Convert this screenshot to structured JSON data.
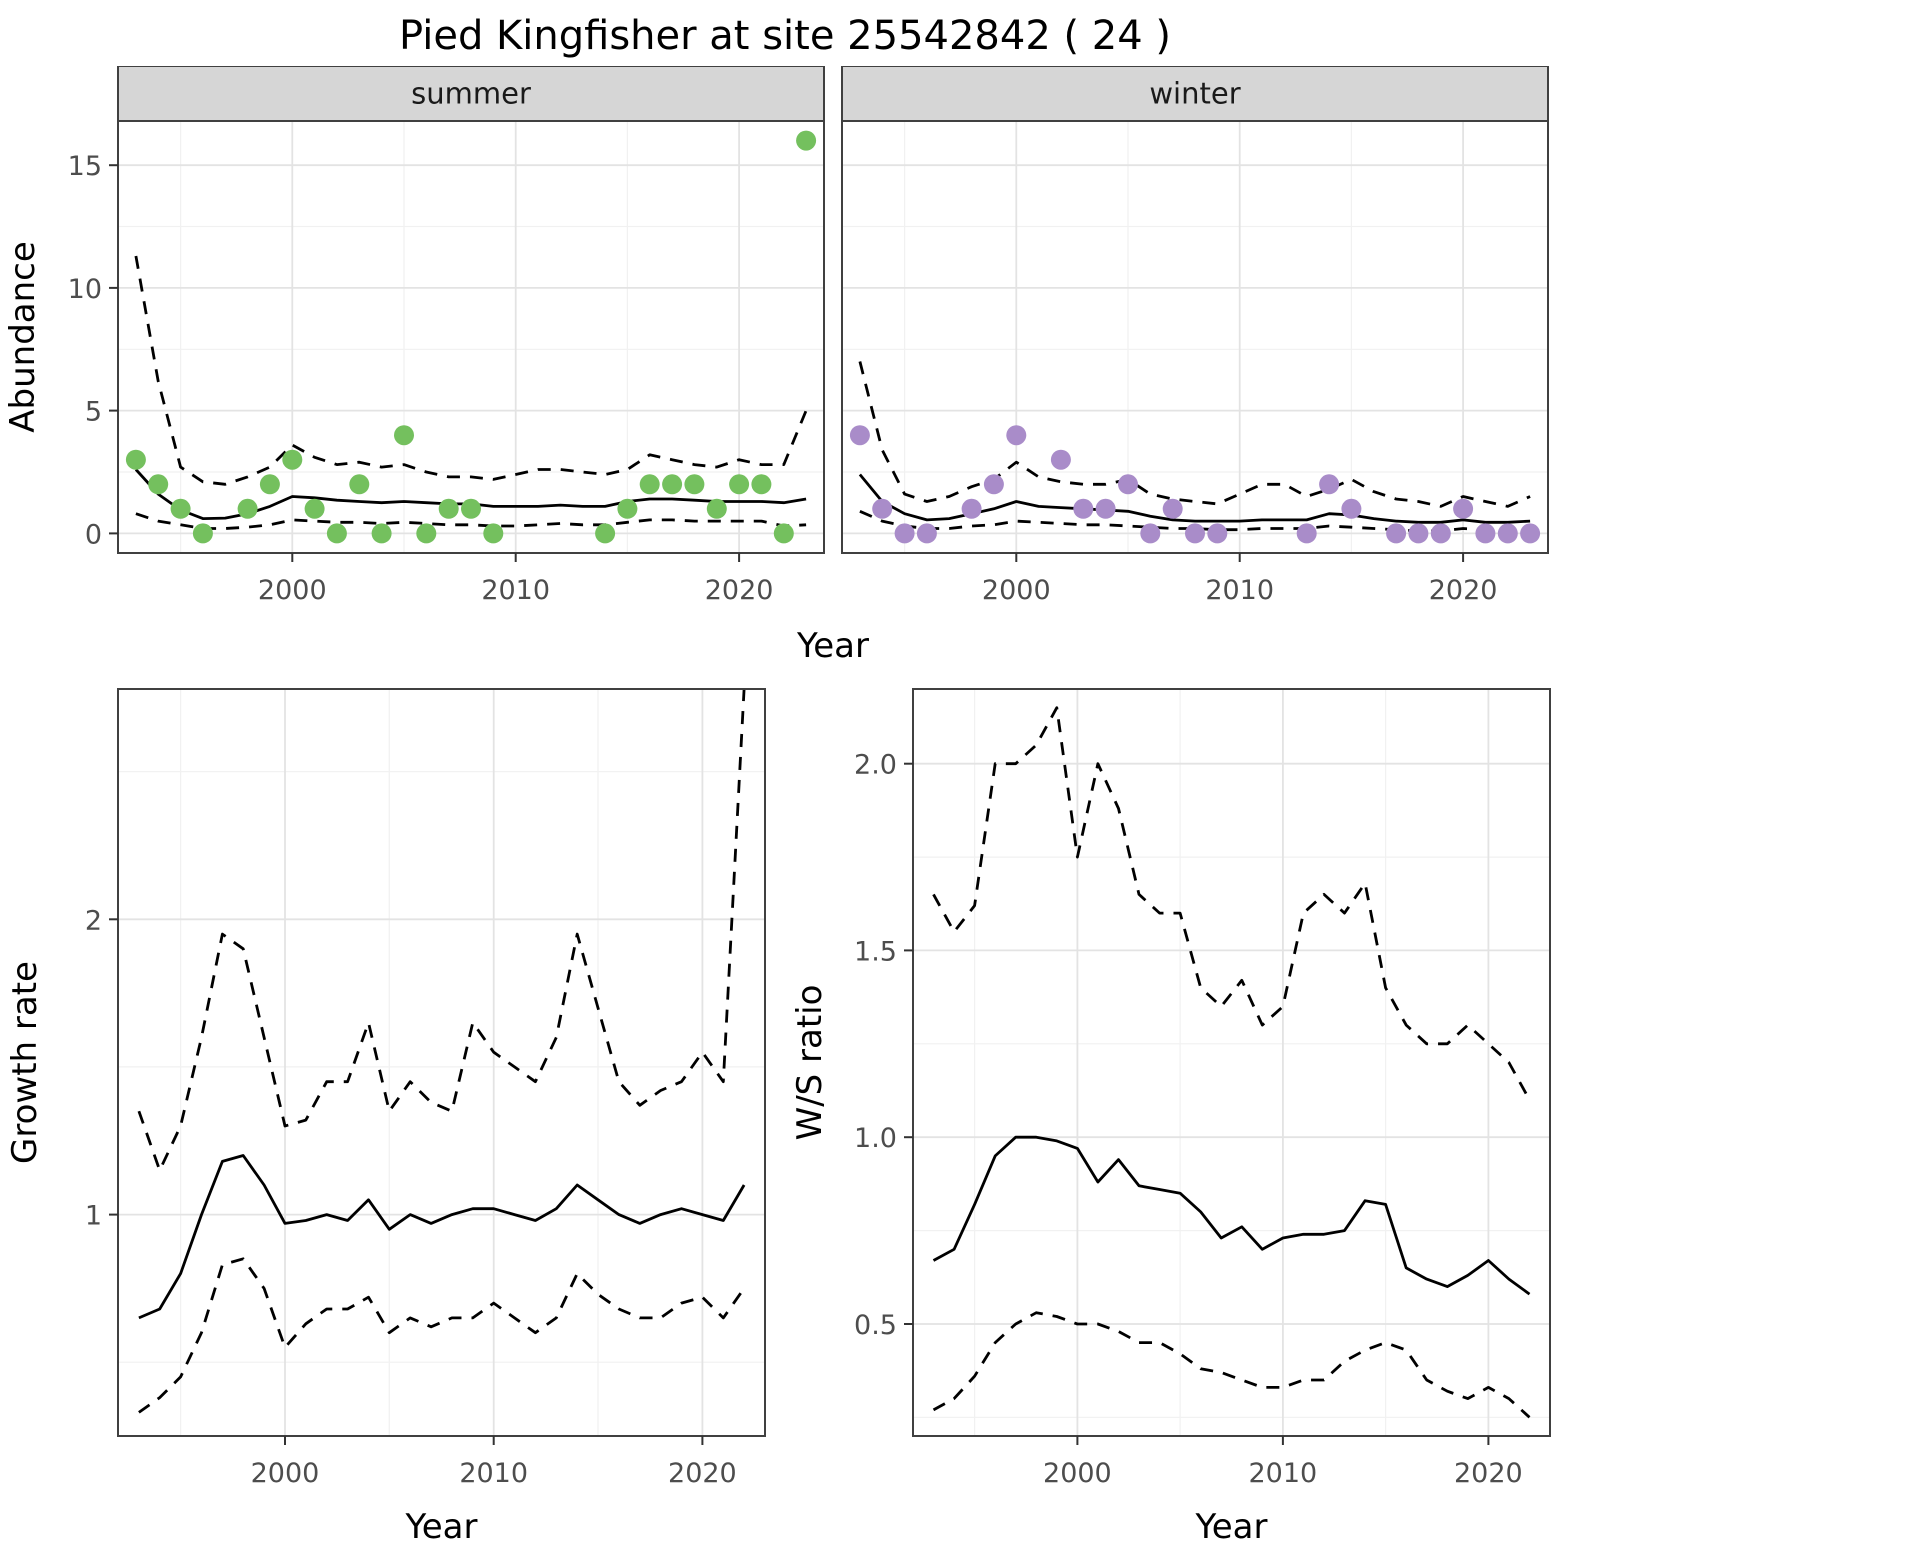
{
  "title": "Pied Kingfisher at site 25542842 ( 24 )",
  "theme": {
    "background": "#ffffff",
    "line": "#000000",
    "grid_major": "#e3e3e3",
    "grid_minor": "#f1f1f1",
    "panel_border": "#404040",
    "strip_bg": "#d6d6d6",
    "tick": "#333333",
    "summer_point": "#74c05e",
    "winter_point": "#a98cc9"
  },
  "chart_data": [
    {
      "id": "abundance",
      "type": "scatter+line",
      "ylabel": "Abundance",
      "xlabel": "Year",
      "xlim": [
        1992.2,
        2023.8
      ],
      "ylim": [
        -0.8,
        16.8
      ],
      "xticks": [
        2000,
        2010,
        2020
      ],
      "xtick_labels": [
        "2000",
        "2010",
        "2020"
      ],
      "yticks": [
        0,
        5,
        10,
        15
      ],
      "ytick_labels": [
        "0",
        "5",
        "10",
        "15"
      ],
      "line_x": [
        1993,
        1994,
        1995,
        1996,
        1997,
        1998,
        1999,
        2000,
        2001,
        2002,
        2003,
        2004,
        2005,
        2006,
        2007,
        2008,
        2009,
        2010,
        2011,
        2012,
        2013,
        2014,
        2015,
        2016,
        2017,
        2018,
        2019,
        2020,
        2021,
        2022,
        2023
      ],
      "facets": [
        {
          "label": "summer",
          "point_color": "#74c05e",
          "points_x": [
            1993,
            1994,
            1995,
            1996,
            1998,
            1999,
            2000,
            2001,
            2002,
            2003,
            2004,
            2005,
            2006,
            2007,
            2008,
            2009,
            2014,
            2015,
            2016,
            2017,
            2018,
            2019,
            2020,
            2021,
            2022,
            2023
          ],
          "points_y": [
            3,
            2,
            1,
            0,
            1,
            2,
            3,
            1,
            0,
            2,
            0,
            4,
            0,
            1,
            1,
            0,
            0,
            1,
            2,
            2,
            2,
            1,
            2,
            2,
            0,
            16
          ],
          "fit": [
            2.6,
            1.6,
            0.95,
            0.6,
            0.62,
            0.8,
            1.1,
            1.5,
            1.45,
            1.35,
            1.3,
            1.25,
            1.3,
            1.25,
            1.2,
            1.2,
            1.1,
            1.1,
            1.1,
            1.15,
            1.1,
            1.1,
            1.3,
            1.4,
            1.4,
            1.35,
            1.3,
            1.3,
            1.3,
            1.25,
            1.4
          ],
          "upper": [
            11.3,
            6.2,
            2.7,
            2.1,
            2.0,
            2.3,
            2.7,
            3.6,
            3.1,
            2.8,
            2.9,
            2.7,
            2.8,
            2.5,
            2.3,
            2.3,
            2.2,
            2.4,
            2.6,
            2.6,
            2.5,
            2.4,
            2.6,
            3.2,
            3.0,
            2.8,
            2.7,
            3.0,
            2.8,
            2.8,
            5.0
          ],
          "lower": [
            0.8,
            0.5,
            0.35,
            0.2,
            0.2,
            0.25,
            0.35,
            0.55,
            0.5,
            0.45,
            0.45,
            0.4,
            0.45,
            0.4,
            0.35,
            0.35,
            0.3,
            0.3,
            0.35,
            0.4,
            0.35,
            0.35,
            0.45,
            0.55,
            0.55,
            0.5,
            0.5,
            0.5,
            0.5,
            0.3,
            0.35
          ]
        },
        {
          "label": "winter",
          "point_color": "#a98cc9",
          "points_x": [
            1993,
            1994,
            1995,
            1996,
            1998,
            1999,
            2000,
            2002,
            2003,
            2004,
            2005,
            2006,
            2007,
            2008,
            2009,
            2013,
            2014,
            2015,
            2017,
            2018,
            2019,
            2020,
            2021,
            2022,
            2023
          ],
          "points_y": [
            4,
            1,
            0,
            0,
            1,
            2,
            4,
            3,
            1,
            1,
            2,
            0,
            1,
            0,
            0,
            0,
            2,
            1,
            0,
            0,
            0,
            1,
            0,
            0,
            0
          ],
          "fit": [
            2.4,
            1.3,
            0.8,
            0.55,
            0.6,
            0.8,
            1.0,
            1.3,
            1.1,
            1.05,
            1.0,
            0.95,
            0.9,
            0.7,
            0.55,
            0.5,
            0.5,
            0.5,
            0.55,
            0.55,
            0.55,
            0.8,
            0.75,
            0.6,
            0.5,
            0.45,
            0.45,
            0.55,
            0.45,
            0.45,
            0.5
          ],
          "upper": [
            7.0,
            3.4,
            1.6,
            1.3,
            1.5,
            1.9,
            2.2,
            2.9,
            2.3,
            2.1,
            2.0,
            2.0,
            2.2,
            1.6,
            1.4,
            1.3,
            1.2,
            1.6,
            2.0,
            2.0,
            1.5,
            1.8,
            2.2,
            1.7,
            1.4,
            1.3,
            1.1,
            1.5,
            1.3,
            1.1,
            1.5
          ],
          "lower": [
            0.9,
            0.5,
            0.3,
            0.2,
            0.2,
            0.3,
            0.35,
            0.5,
            0.45,
            0.4,
            0.35,
            0.35,
            0.3,
            0.25,
            0.2,
            0.2,
            0.15,
            0.15,
            0.2,
            0.2,
            0.2,
            0.3,
            0.25,
            0.2,
            0.15,
            0.1,
            0.1,
            0.2,
            0.15,
            0.1,
            0.15
          ]
        }
      ]
    },
    {
      "id": "growth-rate",
      "type": "line",
      "ylabel": "Growth rate",
      "xlabel": "Year",
      "xlim": [
        1992,
        2023
      ],
      "ylim": [
        0.25,
        2.78
      ],
      "xticks": [
        2000,
        2010,
        2020
      ],
      "xtick_labels": [
        "2000",
        "2010",
        "2020"
      ],
      "yticks": [
        1,
        2
      ],
      "ytick_labels": [
        "1",
        "2"
      ],
      "line_x": [
        1993,
        1994,
        1995,
        1996,
        1997,
        1998,
        1999,
        2000,
        2001,
        2002,
        2003,
        2004,
        2005,
        2006,
        2007,
        2008,
        2009,
        2010,
        2011,
        2012,
        2013,
        2014,
        2015,
        2016,
        2017,
        2018,
        2019,
        2020,
        2021,
        2022
      ],
      "fit": [
        0.65,
        0.68,
        0.8,
        1.0,
        1.18,
        1.2,
        1.1,
        0.97,
        0.98,
        1.0,
        0.98,
        1.05,
        0.95,
        1.0,
        0.97,
        1.0,
        1.02,
        1.02,
        1.0,
        0.98,
        1.02,
        1.1,
        1.05,
        1.0,
        0.97,
        1.0,
        1.02,
        1.0,
        0.98,
        1.1
      ],
      "upper": [
        1.35,
        1.15,
        1.3,
        1.6,
        1.95,
        1.9,
        1.6,
        1.3,
        1.32,
        1.45,
        1.45,
        1.65,
        1.35,
        1.45,
        1.38,
        1.35,
        1.65,
        1.55,
        1.5,
        1.45,
        1.6,
        1.95,
        1.7,
        1.45,
        1.37,
        1.42,
        1.45,
        1.55,
        1.45,
        2.78
      ],
      "lower": [
        0.33,
        0.38,
        0.45,
        0.6,
        0.83,
        0.85,
        0.75,
        0.55,
        0.63,
        0.68,
        0.68,
        0.72,
        0.6,
        0.65,
        0.62,
        0.65,
        0.65,
        0.7,
        0.65,
        0.6,
        0.65,
        0.8,
        0.73,
        0.68,
        0.65,
        0.65,
        0.7,
        0.72,
        0.65,
        0.75
      ]
    },
    {
      "id": "ws-ratio",
      "type": "line",
      "ylabel": "W/S ratio",
      "xlabel": "Year",
      "xlim": [
        1992,
        2023
      ],
      "ylim": [
        0.2,
        2.2
      ],
      "xticks": [
        2000,
        2010,
        2020
      ],
      "xtick_labels": [
        "2000",
        "2010",
        "2020"
      ],
      "yticks": [
        0.5,
        1.0,
        1.5,
        2.0
      ],
      "ytick_labels": [
        "0.5",
        "1.0",
        "1.5",
        "2.0"
      ],
      "line_x": [
        1993,
        1994,
        1995,
        1996,
        1997,
        1998,
        1999,
        2000,
        2001,
        2002,
        2003,
        2004,
        2005,
        2006,
        2007,
        2008,
        2009,
        2010,
        2011,
        2012,
        2013,
        2014,
        2015,
        2016,
        2017,
        2018,
        2019,
        2020,
        2021,
        2022
      ],
      "fit": [
        0.67,
        0.7,
        0.82,
        0.95,
        1.0,
        1.0,
        0.99,
        0.97,
        0.88,
        0.94,
        0.87,
        0.86,
        0.85,
        0.8,
        0.73,
        0.76,
        0.7,
        0.73,
        0.74,
        0.74,
        0.75,
        0.83,
        0.82,
        0.65,
        0.62,
        0.6,
        0.63,
        0.67,
        0.62,
        0.58
      ],
      "upper": [
        1.65,
        1.55,
        1.62,
        2.0,
        2.0,
        2.05,
        2.15,
        1.75,
        2.0,
        1.88,
        1.65,
        1.6,
        1.6,
        1.4,
        1.35,
        1.42,
        1.3,
        1.35,
        1.6,
        1.65,
        1.6,
        1.68,
        1.4,
        1.3,
        1.25,
        1.25,
        1.3,
        1.25,
        1.2,
        1.1
      ],
      "lower": [
        0.27,
        0.3,
        0.36,
        0.45,
        0.5,
        0.53,
        0.52,
        0.5,
        0.5,
        0.48,
        0.45,
        0.45,
        0.42,
        0.38,
        0.37,
        0.35,
        0.33,
        0.33,
        0.35,
        0.35,
        0.4,
        0.43,
        0.45,
        0.43,
        0.35,
        0.32,
        0.3,
        0.33,
        0.3,
        0.25
      ]
    }
  ]
}
